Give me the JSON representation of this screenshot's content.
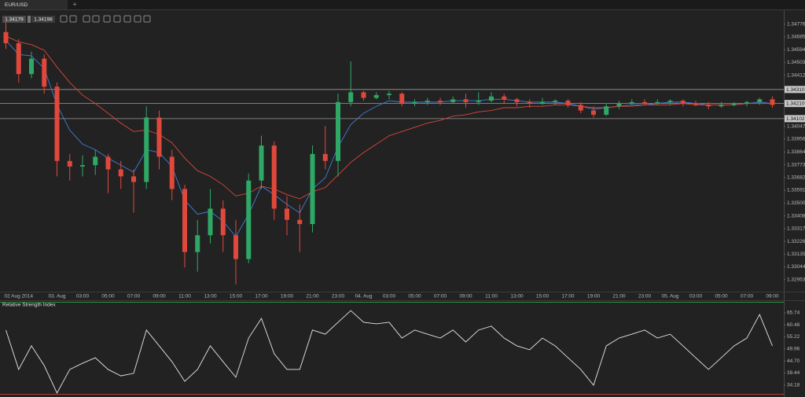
{
  "tab": {
    "title": "EUR/USD",
    "add": "+"
  },
  "chart_data": [
    {
      "type": "candlestick",
      "bid": 1.34179,
      "ask": 1.34198,
      "categories": [
        null,
        "02 Aug 2014",
        null,
        null,
        "03. Aug",
        null,
        "03:00",
        null,
        "05:00",
        null,
        "07:00",
        null,
        "09:00",
        null,
        "11:00",
        null,
        "13:00",
        null,
        "15:00",
        null,
        "17:00",
        null,
        "19:00",
        null,
        "21:00",
        null,
        "23:00",
        null,
        "04. Aug",
        null,
        "03:00",
        null,
        "05:00",
        null,
        "07:00",
        null,
        "09:00",
        null,
        "11:00",
        null,
        "13:00",
        null,
        "15:00",
        null,
        "17:00",
        null,
        "19:00",
        null,
        "21:00",
        null,
        "23:00",
        null,
        "05. Aug",
        null,
        "03:00",
        null,
        "05:00",
        null,
        "07:00",
        null,
        "09:00"
      ],
      "open": [
        1.3472,
        1.3464,
        1.3442,
        1.3453,
        1.3433,
        1.338,
        1.3376,
        1.3377,
        1.3383,
        1.3374,
        1.3369,
        1.3365,
        1.3411,
        1.3383,
        1.336,
        1.3315,
        1.3327,
        1.3346,
        1.3327,
        1.331,
        1.3366,
        1.3391,
        1.3346,
        1.3338,
        1.3335,
        1.3385,
        1.338,
        1.3422,
        1.3429,
        1.3425,
        1.3427,
        1.3428,
        1.3421,
        1.3422,
        1.3423,
        1.3422,
        1.3424,
        1.3422,
        1.3423,
        1.3426,
        1.3424,
        1.3422,
        1.3421,
        1.3422,
        1.3423,
        1.342,
        1.3416,
        1.3413,
        1.3419,
        1.3421,
        1.3422,
        1.3421,
        1.3422,
        1.3423,
        1.3421,
        1.342,
        1.3419,
        1.342,
        1.3421,
        1.3422,
        1.3424
      ],
      "high": [
        1.3479,
        1.3467,
        1.3458,
        1.3456,
        1.3436,
        1.3385,
        1.3384,
        1.3388,
        1.3385,
        1.338,
        1.3374,
        1.3419,
        1.3416,
        1.3388,
        1.3363,
        1.3338,
        1.336,
        1.3352,
        1.3338,
        1.3371,
        1.3398,
        1.3394,
        1.3355,
        1.3349,
        1.3391,
        1.3405,
        1.3428,
        1.3451,
        1.343,
        1.3429,
        1.343,
        1.3429,
        1.3424,
        1.3425,
        1.3425,
        1.3426,
        1.3428,
        1.3429,
        1.3429,
        1.3428,
        1.3425,
        1.3424,
        1.3425,
        1.3424,
        1.3424,
        1.3422,
        1.3419,
        1.3421,
        1.3423,
        1.3424,
        1.3424,
        1.3424,
        1.3424,
        1.3424,
        1.3423,
        1.3422,
        1.3422,
        1.3422,
        1.3423,
        1.3425,
        1.3426
      ],
      "low": [
        1.346,
        1.3436,
        1.3439,
        1.3428,
        1.3369,
        1.3366,
        1.3369,
        1.337,
        1.3357,
        1.336,
        1.3343,
        1.336,
        1.3374,
        1.3352,
        1.3304,
        1.3301,
        1.3321,
        1.3315,
        1.3292,
        1.3307,
        1.336,
        1.3338,
        1.3327,
        1.3315,
        1.3329,
        1.3374,
        1.3369,
        1.3419,
        1.3423,
        1.3424,
        1.3424,
        1.3419,
        1.3419,
        1.342,
        1.342,
        1.3421,
        1.3418,
        1.342,
        1.3422,
        1.3421,
        1.3419,
        1.3418,
        1.342,
        1.342,
        1.3418,
        1.3414,
        1.3411,
        1.3412,
        1.3417,
        1.342,
        1.342,
        1.342,
        1.342,
        1.3419,
        1.3419,
        1.3417,
        1.3418,
        1.3419,
        1.3419,
        1.342,
        1.3418
      ],
      "close": [
        1.3464,
        1.3442,
        1.3453,
        1.3433,
        1.338,
        1.3376,
        1.3377,
        1.3383,
        1.3374,
        1.3369,
        1.3365,
        1.3411,
        1.3383,
        1.336,
        1.3315,
        1.3327,
        1.3346,
        1.3327,
        1.331,
        1.3366,
        1.3391,
        1.3346,
        1.3338,
        1.3335,
        1.3385,
        1.338,
        1.3422,
        1.3429,
        1.3425,
        1.3427,
        1.3428,
        1.3421,
        1.3422,
        1.3423,
        1.3422,
        1.3424,
        1.3422,
        1.3423,
        1.3426,
        1.3424,
        1.3422,
        1.3421,
        1.3422,
        1.3423,
        1.342,
        1.3416,
        1.3413,
        1.3419,
        1.3421,
        1.3422,
        1.3421,
        1.3422,
        1.3423,
        1.3421,
        1.342,
        1.3419,
        1.342,
        1.3421,
        1.3422,
        1.3424,
        1.342
      ],
      "up_color": "#2fa865",
      "down_color": "#e0483c",
      "series": [
        {
          "color": "#3f7fd6",
          "values": [
            1.3466,
            1.3456,
            1.3455,
            1.3446,
            1.342,
            1.3402,
            1.3392,
            1.3388,
            1.3382,
            1.3377,
            1.3372,
            1.3388,
            1.3386,
            1.3376,
            1.3352,
            1.3342,
            1.3344,
            1.3337,
            1.3326,
            1.3342,
            1.3362,
            1.3356,
            1.3349,
            1.3343,
            1.336,
            1.3368,
            1.339,
            1.3406,
            1.3414,
            1.3419,
            1.3423,
            1.3422,
            1.3422,
            1.3422,
            1.3422,
            1.3423,
            1.3423,
            1.3423,
            1.3424,
            1.3424,
            1.3423,
            1.3422,
            1.3422,
            1.3422,
            1.3421,
            1.3419,
            1.3417,
            1.3418,
            1.3419,
            1.342,
            1.342,
            1.3421,
            1.3422,
            1.3422,
            1.3421,
            1.342,
            1.342,
            1.342,
            1.3421,
            1.3422,
            1.3421
          ]
        },
        {
          "color": "#d9473b",
          "values": [
            1.3469,
            1.3465,
            1.3463,
            1.3459,
            1.3447,
            1.3436,
            1.3427,
            1.3421,
            1.3414,
            1.3407,
            1.3401,
            1.3402,
            1.3399,
            1.3393,
            1.3382,
            1.3373,
            1.3369,
            1.3363,
            1.3355,
            1.3357,
            1.3362,
            1.336,
            1.3356,
            1.3353,
            1.3358,
            1.3361,
            1.337,
            1.3379,
            1.3386,
            1.3392,
            1.3398,
            1.3401,
            1.3404,
            1.3407,
            1.3409,
            1.3412,
            1.3413,
            1.3415,
            1.3416,
            1.3418,
            1.3418,
            1.3419,
            1.3419,
            1.342,
            1.342,
            1.3419,
            1.3418,
            1.3418,
            1.3419,
            1.3419,
            1.342,
            1.342,
            1.342,
            1.3421,
            1.342,
            1.342,
            1.342,
            1.342,
            1.3421,
            1.3421,
            1.3421
          ]
        }
      ],
      "levels": [
        {
          "value": 1.3431,
          "label": "1.34310"
        },
        {
          "value": 1.3421,
          "label": "1.34210"
        },
        {
          "value": 1.34102,
          "label": "1.34102"
        }
      ],
      "ylim": [
        1.32873,
        1.3487
      ],
      "yticks": [
        1.34776,
        1.34685,
        1.34594,
        1.34503,
        1.34412,
        1.34047,
        1.33956,
        1.33864,
        1.33773,
        1.33682,
        1.33591,
        {
          "value": 1.335,
          "label": "1.33500"
        },
        1.33408,
        1.33317,
        1.33226,
        1.33135,
        1.33044,
        1.32953
      ]
    },
    {
      "type": "line",
      "title": "Relative Strength Index",
      "color": "#e6e6e6",
      "values": [
        58.2,
        41.0,
        51.3,
        42.7,
        30.7,
        41.0,
        43.7,
        46.1,
        41.0,
        38.2,
        39.3,
        58.2,
        51.3,
        44.4,
        35.8,
        41.0,
        51.3,
        44.4,
        37.6,
        54.7,
        63.3,
        47.9,
        41.0,
        41.0,
        58.2,
        56.4,
        61.6,
        66.7,
        61.6,
        60.9,
        61.6,
        54.7,
        58.2,
        56.4,
        54.7,
        58.2,
        53.0,
        58.2,
        59.9,
        54.7,
        51.3,
        49.6,
        54.7,
        51.3,
        46.1,
        41.0,
        34.1,
        51.3,
        54.7,
        56.4,
        58.2,
        54.7,
        56.4,
        51.3,
        46.1,
        41.0,
        46.1,
        51.3,
        54.7,
        65.0,
        51.3
      ],
      "ylim": [
        30,
        70.5
      ],
      "yticks": [
        65.74,
        60.48,
        55.22,
        49.96,
        {
          "value": 44.7,
          "label": "44.70"
        },
        39.44,
        34.18
      ]
    }
  ]
}
